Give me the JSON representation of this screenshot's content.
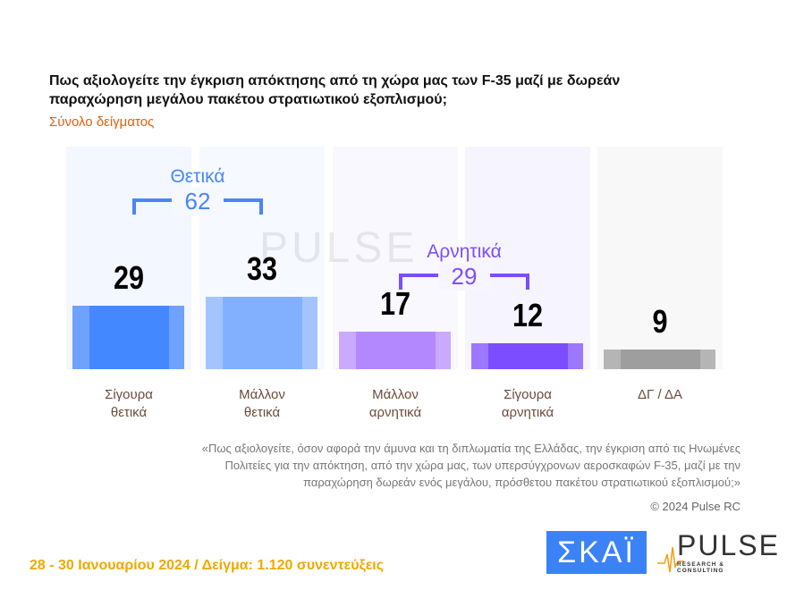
{
  "title": "Πως αξιολογείτε την έγκριση απόκτησης από τη χώρα μας των F-35 μαζί με δωρεάν παραχώρηση μεγάλου πακέτου στρατιωτικού εξοπλισμού;",
  "subtitle": "Σύνολο δείγματος",
  "chart_data": {
    "type": "bar",
    "categories": [
      "Σίγουρα θετικά",
      "Μάλλον θετικά",
      "Μάλλον αρνητικά",
      "Σίγουρα αρνητικά",
      "ΔΓ / ΔΑ"
    ],
    "values": [
      29,
      33,
      17,
      12,
      9
    ],
    "colors": [
      "#4488ff",
      "#82b0ff",
      "#b388ff",
      "#7c4dff",
      "#9e9e9e"
    ],
    "ylim": [
      0,
      100
    ],
    "groups": [
      {
        "label": "Θετικά",
        "value": "62",
        "color": "#4a86f5"
      },
      {
        "label": "Αρνητικά",
        "value": "29",
        "color": "#7c4dff"
      }
    ]
  },
  "note": "«Πως αξιολογείτε, όσον αφορά την άμυνα και τη διπλωματία της Ελλάδας, την έγκριση από τις Ηνωμένες Πολιτείες για την απόκτηση, από την χώρα μας, των υπερσύγχρονων αεροσκαφών F-35, μαζί με την παραχώρηση δωρεάν ενός μεγάλου, πρόσθετου πακέτου στρατιωτικού εξοπλισμού;»",
  "copyright": "© 2024 Pulse RC",
  "footer": "28 - 30 Ιανουαρίου 2024  /  Δείγμα:  1.120 συνεντεύξεις",
  "logos": {
    "skai": "ΣΚΑΪ",
    "pulse": "PULSE",
    "pulse_tag": "RESEARCH & CONSULTING"
  }
}
